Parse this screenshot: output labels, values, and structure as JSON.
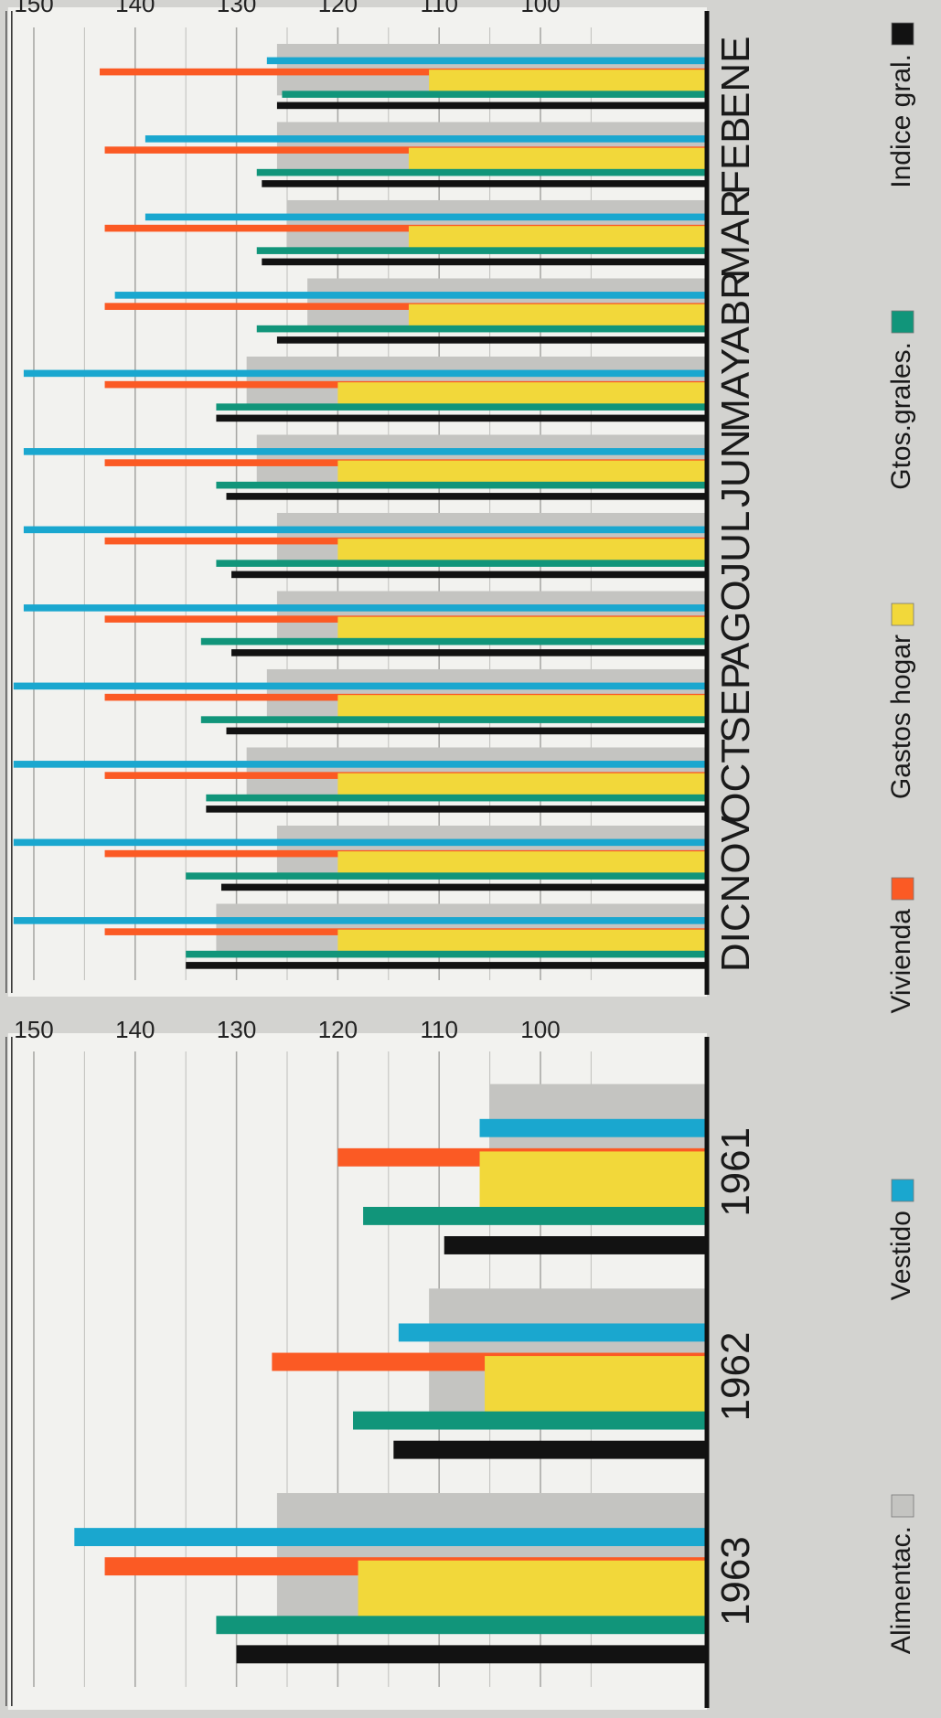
{
  "chart_data": [
    {
      "type": "bar",
      "categories": [
        "ENE",
        "FEB",
        "MAR",
        "ABR",
        "MAY",
        "JUN",
        "JUL",
        "AGO",
        "SEP",
        "OCT",
        "NOV",
        "DIC"
      ],
      "ylim": [
        90,
        152
      ],
      "ticks": [
        100,
        110,
        120,
        130,
        140,
        150
      ],
      "series": [
        {
          "name": "Alimentac.",
          "color": "#c4c4c1",
          "values": [
            126,
            126,
            125,
            123,
            129,
            128,
            126,
            126,
            127,
            129,
            126,
            132
          ]
        },
        {
          "name": "Vestido",
          "color": "#1aa7cf",
          "values": [
            127,
            139,
            139,
            142,
            151,
            151,
            151,
            151,
            152,
            152,
            152,
            152
          ]
        },
        {
          "name": "Vivienda",
          "color": "#fb5a24",
          "values": [
            143.5,
            143,
            143,
            143,
            143,
            143,
            143,
            143,
            143,
            143,
            143,
            143
          ]
        },
        {
          "name": "Gastos hogar",
          "color": "#f2d83a",
          "values": [
            111,
            113,
            113,
            113,
            120,
            120,
            120,
            120,
            120,
            120,
            120,
            120
          ]
        },
        {
          "name": "Gtos.grales.",
          "color": "#11957a",
          "values": [
            125.5,
            128,
            128,
            128,
            132,
            132,
            132,
            133.5,
            133.5,
            133,
            135,
            135
          ]
        },
        {
          "name": "Indice gral.",
          "color": "#121212",
          "values": [
            126,
            127.5,
            127.5,
            126,
            132,
            131,
            130.5,
            130.5,
            131,
            133,
            131.5,
            135
          ]
        }
      ]
    },
    {
      "type": "bar",
      "categories": [
        "1961",
        "1962",
        "1963"
      ],
      "ylim": [
        90,
        152
      ],
      "ticks": [
        100,
        110,
        120,
        130,
        140,
        150
      ],
      "series": [
        {
          "name": "Alimentac.",
          "color": "#c4c4c1",
          "values": [
            105,
            111,
            126
          ]
        },
        {
          "name": "Vestido",
          "color": "#1aa7cf",
          "values": [
            106,
            114,
            146
          ]
        },
        {
          "name": "Vivienda",
          "color": "#fb5a24",
          "values": [
            120,
            126.5,
            143
          ]
        },
        {
          "name": "Gastos hogar",
          "color": "#f2d83a",
          "values": [
            106,
            105.5,
            118
          ]
        },
        {
          "name": "Gtos.grales.",
          "color": "#11957a",
          "values": [
            117.5,
            118.5,
            132
          ]
        },
        {
          "name": "Indice gral.",
          "color": "#121212",
          "values": [
            109.5,
            114.5,
            130
          ]
        }
      ]
    }
  ],
  "legend": [
    {
      "label": "Alimentac.",
      "color": "#c4c4c1"
    },
    {
      "label": "Vestido",
      "color": "#1aa7cf"
    },
    {
      "label": "Vivienda",
      "color": "#fb5a24"
    },
    {
      "label": "Gastos hogar",
      "color": "#f2d83a"
    },
    {
      "label": "Gtos.grales.",
      "color": "#11957a"
    },
    {
      "label": "Indice gral.",
      "color": "#121212"
    }
  ]
}
